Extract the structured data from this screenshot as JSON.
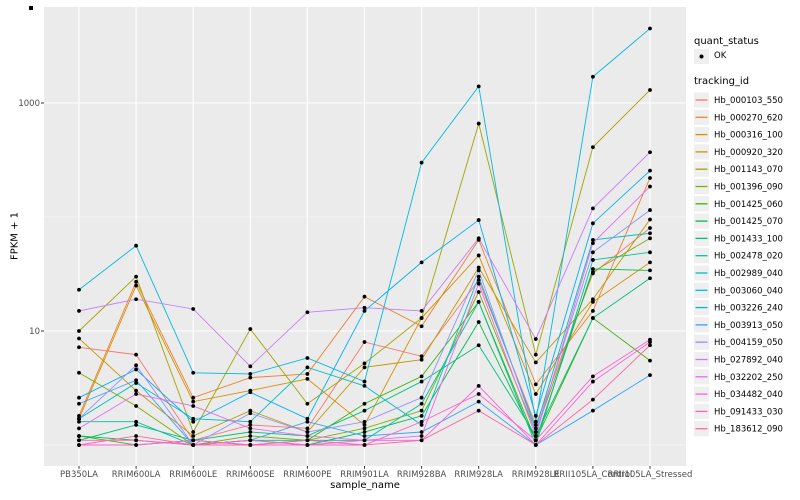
{
  "figure": {
    "background": "#FFFFFF",
    "panel_bg": "#EBEBEB",
    "gridline_color": "#FFFFFF",
    "tick_label_color": "#4D4D4D",
    "point_color": "#000000"
  },
  "chart_data": {
    "type": "line",
    "title": "",
    "xlabel": "sample_name",
    "ylabel": "FPKM + 1",
    "y_scale": "log10",
    "y_tick_labels": [
      "10",
      "1000"
    ],
    "y_ticks": [
      10,
      1000
    ],
    "y_minor_gridlines": [
      1,
      100
    ],
    "ylim": [
      0.65,
      7000
    ],
    "grid": true,
    "legend_position": "right",
    "marker": "black point (quant_status = OK) on every value",
    "categories": [
      "PB350LA",
      "RRIM600LA",
      "RRIM600LE",
      "RRIM600SE",
      "RRIM600PE",
      "RRIM901LA",
      "RRIM928BA",
      "RRIM928LA",
      "RRIM928LE",
      "RRII105LA_Control",
      "RRII105LA_Stressed"
    ],
    "series": [
      {
        "name": "Hb_000103_550",
        "color": "#F8766D",
        "values": [
          7.2,
          6.2,
          1.1,
          1.5,
          1.4,
          8.0,
          6.0,
          28,
          1.5,
          32,
          80
        ]
      },
      {
        "name": "Hb_000270_620",
        "color": "#EA8331",
        "values": [
          1.8,
          27,
          2.6,
          3.9,
          4.2,
          20,
          11,
          63,
          3.4,
          15,
          220
        ]
      },
      {
        "name": "Hb_000316_100",
        "color": "#D89000",
        "values": [
          1.7,
          25,
          2.4,
          3.0,
          3.8,
          1.5,
          13,
          46,
          2.8,
          18,
          40
        ]
      },
      {
        "name": "Hb_000920_320",
        "color": "#C09B00",
        "values": [
          8.6,
          3.0,
          1.2,
          2.0,
          1.3,
          4.8,
          5.6,
          36,
          5.3,
          19,
          95
        ]
      },
      {
        "name": "Hb_001143_070",
        "color": "#A3A500",
        "values": [
          10,
          30,
          1.3,
          10.4,
          2.3,
          5.2,
          13,
          660,
          6.2,
          410,
          1300
        ]
      },
      {
        "name": "Hb_001396_090",
        "color": "#7CAE00",
        "values": [
          4.3,
          2.2,
          1.0,
          1.2,
          1.1,
          1.4,
          2.0,
          22,
          1.3,
          33,
          65
        ]
      },
      {
        "name": "Hb_001425_060",
        "color": "#39B600",
        "values": [
          1.2,
          1.0,
          1.1,
          1.0,
          1.1,
          2.3,
          4.0,
          18,
          1.1,
          13,
          5.5
        ]
      },
      {
        "name": "Hb_001425_070",
        "color": "#00BB4E",
        "values": [
          1.2,
          1.1,
          1.0,
          1.1,
          1.0,
          1.3,
          1.8,
          12,
          1.1,
          35,
          34
        ]
      },
      {
        "name": "Hb_001433_100",
        "color": "#00BF7D",
        "values": [
          1.1,
          1.5,
          1.1,
          1.3,
          1.2,
          2.0,
          3.6,
          7.5,
          1.2,
          13,
          29
        ]
      },
      {
        "name": "Hb_002478_020",
        "color": "#00C1A3",
        "values": [
          1.6,
          1.6,
          1.0,
          1.1,
          1.1,
          1.1,
          2.3,
          18,
          1.0,
          42,
          49
        ]
      },
      {
        "name": "Hb_002989_040",
        "color": "#00BFC4",
        "values": [
          1.7,
          3.5,
          1.7,
          1.6,
          4.8,
          3.3,
          1.5,
          30,
          1.4,
          63,
          72
        ]
      },
      {
        "name": "Hb_003060_040",
        "color": "#00BAE0",
        "values": [
          23,
          56,
          4.3,
          4.2,
          5.8,
          3.6,
          300,
          1400,
          1.6,
          1700,
          4500
        ]
      },
      {
        "name": "Hb_003226_240",
        "color": "#00B0F6",
        "values": [
          2.6,
          4.6,
          1.6,
          2.9,
          1.7,
          15,
          40,
          94,
          1.8,
          88,
          255
        ]
      },
      {
        "name": "Hb_003913_050",
        "color": "#35A2FF",
        "values": [
          2.3,
          3.7,
          1.0,
          1.1,
          1.6,
          1.2,
          1.3,
          2.4,
          1.0,
          2.0,
          4.1
        ]
      },
      {
        "name": "Hb_004159_050",
        "color": "#9590FF",
        "values": [
          1.7,
          5.0,
          1.0,
          1.9,
          1.3,
          1.6,
          2.6,
          34,
          1.3,
          49,
          115
        ]
      },
      {
        "name": "Hb_027892_040",
        "color": "#C77CFF",
        "values": [
          15,
          19,
          15.6,
          4.9,
          14.6,
          16,
          15,
          65,
          8.5,
          119,
          370
        ]
      },
      {
        "name": "Hb_032202_250",
        "color": "#E76BF3",
        "values": [
          1.4,
          2.8,
          2.2,
          1.4,
          1.2,
          1.1,
          1.2,
          26,
          1.2,
          59,
          185
        ]
      },
      {
        "name": "Hb_034482_040",
        "color": "#FA62DB",
        "values": [
          1.0,
          1.0,
          1.1,
          1.0,
          1.0,
          1.1,
          1.1,
          3.3,
          1.0,
          3.6,
          8.0
        ]
      },
      {
        "name": "Hb_091433_030",
        "color": "#FF61C9",
        "values": [
          1.1,
          1.1,
          1.0,
          1.1,
          1.0,
          1.0,
          1.6,
          2.8,
          1.1,
          4.0,
          8.4
        ]
      },
      {
        "name": "Hb_183612_090",
        "color": "#FF67A4",
        "values": [
          1.0,
          1.2,
          1.0,
          1.0,
          1.1,
          1.0,
          1.1,
          2.0,
          1.0,
          2.5,
          7.5
        ]
      }
    ]
  },
  "legend": {
    "quant_status": {
      "title": "quant_status",
      "items": [
        {
          "label": "OK",
          "marker": "point",
          "color": "#000000"
        }
      ]
    },
    "tracking_id": {
      "title": "tracking_id",
      "key_bg": "#EFEFEF"
    }
  }
}
